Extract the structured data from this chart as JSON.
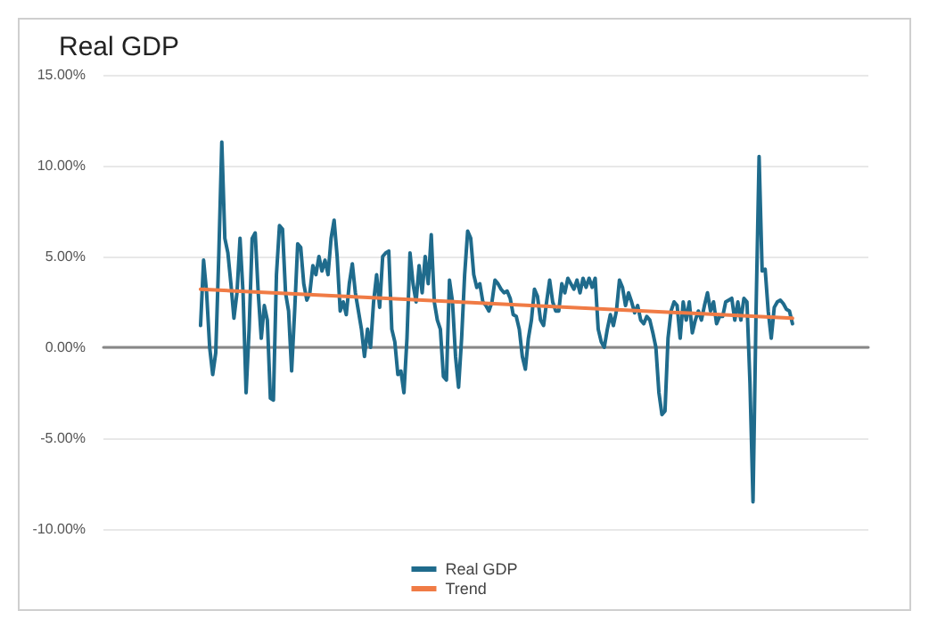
{
  "chart_data": {
    "type": "line",
    "title": "Real GDP",
    "categories": [
      null,
      null,
      null,
      null,
      null,
      null,
      null,
      null,
      null,
      null,
      null,
      null,
      null,
      null,
      null,
      null,
      null,
      null,
      null,
      null,
      null,
      null,
      null,
      null,
      null,
      null,
      null,
      null,
      null,
      null,
      null,
      null,
      null,
      null,
      null,
      null,
      null,
      null,
      null,
      null,
      null,
      null,
      null,
      null,
      null,
      null,
      null,
      null,
      null,
      null,
      null,
      null,
      null,
      null,
      null,
      null,
      null,
      null,
      null,
      null,
      null,
      null,
      null,
      null,
      null,
      null,
      null,
      null,
      null,
      null,
      null,
      null,
      null,
      null,
      null,
      null,
      null,
      null,
      null,
      null,
      null,
      null,
      null,
      null,
      null,
      null,
      null,
      null,
      null,
      null,
      null,
      null,
      null,
      null,
      null,
      null,
      null,
      null,
      null,
      null,
      null,
      null,
      null,
      null,
      null,
      null,
      null,
      null,
      null,
      null,
      null,
      null,
      null,
      null,
      null,
      null,
      null,
      null,
      null,
      null,
      null,
      null,
      null,
      null,
      null,
      null,
      null,
      null,
      null,
      null,
      null,
      null,
      null,
      null,
      null,
      null,
      null,
      null,
      null,
      null,
      null,
      null,
      null,
      null,
      null,
      null,
      null,
      null,
      null,
      null,
      null,
      null,
      null,
      null,
      null,
      null,
      null,
      null,
      null,
      null,
      null,
      null,
      null,
      null,
      null,
      null,
      null,
      null,
      null,
      null,
      null,
      null,
      null,
      null,
      null,
      null,
      null,
      null,
      null,
      null,
      null,
      null,
      null,
      null,
      null,
      null,
      null,
      null,
      null,
      null,
      null,
      null,
      null,
      null,
      null,
      null,
      null,
      null,
      null,
      null,
      null,
      null,
      null,
      null,
      null,
      null,
      null,
      null,
      null,
      null,
      null,
      null,
      null,
      null,
      null,
      null,
      null,
      null,
      null,
      null,
      null,
      null,
      null,
      null,
      null,
      null,
      null,
      null,
      null,
      null,
      null,
      null,
      null,
      null,
      null,
      null,
      null,
      null,
      null,
      null,
      null,
      null,
      null,
      null,
      null,
      null,
      null,
      null,
      null,
      null,
      null,
      null,
      null
    ],
    "series": [
      {
        "name": "Real GDP",
        "color": "#1f6b8c",
        "values": [
          null,
          null,
          null,
          null,
          null,
          null,
          null,
          null,
          null,
          null,
          null,
          null,
          null,
          null,
          null,
          null,
          null,
          null,
          null,
          null,
          null,
          null,
          null,
          null,
          null,
          null,
          null,
          null,
          null,
          null,
          null,
          null,
          1.2,
          4.8,
          3.0,
          0,
          -1.5,
          -0.3,
          5,
          11.3,
          6,
          5.2,
          3.5,
          1.6,
          3,
          6,
          3,
          -2.5,
          1,
          6,
          6.3,
          3,
          0.5,
          2.3,
          1.5,
          -2.8,
          -2.9,
          4,
          6.7,
          6.5,
          3,
          2,
          -1.3,
          2,
          5.7,
          5.5,
          3.5,
          2.6,
          3,
          4.5,
          4,
          5,
          4.2,
          4.8,
          4,
          6,
          7,
          5,
          2,
          2.5,
          1.8,
          3.5,
          4.6,
          3,
          2,
          1,
          -0.5,
          1,
          0,
          2.5,
          4,
          2.2,
          5,
          5.2,
          5.3,
          1,
          0.3,
          -1.5,
          -1.3,
          -2.5,
          0.5,
          5.2,
          3.5,
          2.5,
          4.5,
          3,
          5,
          3.5,
          6.2,
          2.5,
          1.5,
          1.0,
          -1.6,
          -1.8,
          3.7,
          2.5,
          -0.5,
          -2.2,
          0.5,
          4,
          6.4,
          6,
          4,
          3.3,
          3.5,
          2.5,
          2.3,
          2.0,
          2.5,
          3.7,
          3.5,
          3.2,
          3.0,
          3.1,
          2.7,
          1.8,
          1.7,
          1.0,
          -0.5,
          -1.2,
          0.5,
          1.5,
          3.2,
          2.8,
          1.5,
          1.2,
          2.5,
          3.7,
          2.5,
          2.0,
          2.0,
          3.5,
          3.0,
          3.8,
          3.5,
          3.2,
          3.7,
          3.0,
          3.8,
          3.3,
          3.8,
          3.3,
          3.8,
          1.0,
          0.3,
          0.0,
          1.0,
          1.8,
          1.2,
          2.0,
          3.7,
          3.3,
          2.3,
          3.0,
          2.5,
          1.9,
          2.3,
          1.5,
          1.3,
          1.7,
          1.5,
          0.8,
          0,
          -2.5,
          -3.7,
          -3.5,
          0.5,
          2.0,
          2.5,
          2.3,
          0.5,
          2.5,
          1.5,
          2.5,
          0.8,
          1.5,
          2.0,
          1.5,
          2.3,
          3.0,
          2.0,
          2.5,
          1.3,
          1.7,
          1.7,
          2.5,
          2.6,
          2.7,
          1.5,
          2.5,
          1.5,
          2.7,
          2.5,
          -2,
          -8.5,
          2,
          10.5,
          4.2,
          4.3,
          2,
          0.5,
          2.2,
          2.5,
          2.6,
          2.4,
          2.1,
          2.0,
          1.3,
          null,
          null,
          null,
          null,
          null,
          null,
          null,
          null,
          null,
          null,
          null,
          null,
          null,
          null,
          null,
          null,
          null,
          null,
          null,
          null,
          null,
          null,
          null,
          null,
          null
        ]
      },
      {
        "name": "Trend",
        "color": "#f07b45",
        "values": [
          null,
          null,
          null,
          null,
          null,
          null,
          null,
          null,
          null,
          null,
          null,
          null,
          null,
          null,
          null,
          null,
          null,
          null,
          null,
          null,
          null,
          null,
          null,
          null,
          null,
          null,
          null,
          null,
          null,
          null,
          null,
          null,
          3.2,
          null,
          null,
          null,
          null,
          null,
          null,
          null,
          null,
          null,
          null,
          null,
          null,
          null,
          null,
          null,
          null,
          null,
          null,
          null,
          null,
          null,
          null,
          null,
          null,
          null,
          null,
          null,
          null,
          null,
          null,
          null,
          null,
          null,
          null,
          null,
          null,
          null,
          null,
          null,
          null,
          null,
          null,
          null,
          null,
          null,
          null,
          null,
          null,
          null,
          null,
          null,
          null,
          null,
          null,
          null,
          null,
          null,
          null,
          null,
          null,
          null,
          null,
          null,
          null,
          null,
          null,
          null,
          null,
          null,
          null,
          null,
          null,
          null,
          null,
          null,
          null,
          null,
          null,
          null,
          null,
          null,
          null,
          null,
          null,
          null,
          null,
          null,
          null,
          null,
          null,
          null,
          null,
          null,
          null,
          null,
          null,
          null,
          null,
          null,
          null,
          null,
          null,
          null,
          null,
          null,
          null,
          null,
          null,
          null,
          null,
          null,
          null,
          null,
          null,
          null,
          null,
          null,
          null,
          null,
          null,
          null,
          null,
          null,
          null,
          null,
          null,
          null,
          null,
          null,
          null,
          null,
          null,
          null,
          null,
          null,
          null,
          null,
          null,
          null,
          null,
          null,
          null,
          null,
          null,
          null,
          null,
          null,
          null,
          null,
          null,
          null,
          null,
          null,
          null,
          null,
          null,
          null,
          null,
          null,
          null,
          null,
          null,
          null,
          null,
          null,
          null,
          null,
          null,
          null,
          null,
          null,
          null,
          null,
          null,
          null,
          null,
          null,
          null,
          null,
          null,
          null,
          null,
          null,
          null,
          null,
          null,
          null,
          null,
          null,
          null,
          null,
          null,
          null,
          null,
          1.6,
          null,
          null,
          null,
          null,
          null,
          null,
          null,
          null,
          null,
          null,
          null,
          null,
          null,
          null,
          null,
          null,
          null,
          null,
          null,
          null,
          null,
          null,
          null,
          null,
          null
        ]
      }
    ],
    "ylim": [
      -10,
      15
    ],
    "yticks": [
      {
        "value": -10,
        "label": "-10.00%"
      },
      {
        "value": -5,
        "label": "-5.00%"
      },
      {
        "value": 0,
        "label": "0.00%"
      },
      {
        "value": 5,
        "label": "5.00%"
      },
      {
        "value": 10,
        "label": "10.00%"
      },
      {
        "value": 15,
        "label": "15.00%"
      }
    ],
    "grid": "y",
    "legend": "bottom",
    "marker": "none",
    "line_style": "solid",
    "tick_labels": "y"
  }
}
